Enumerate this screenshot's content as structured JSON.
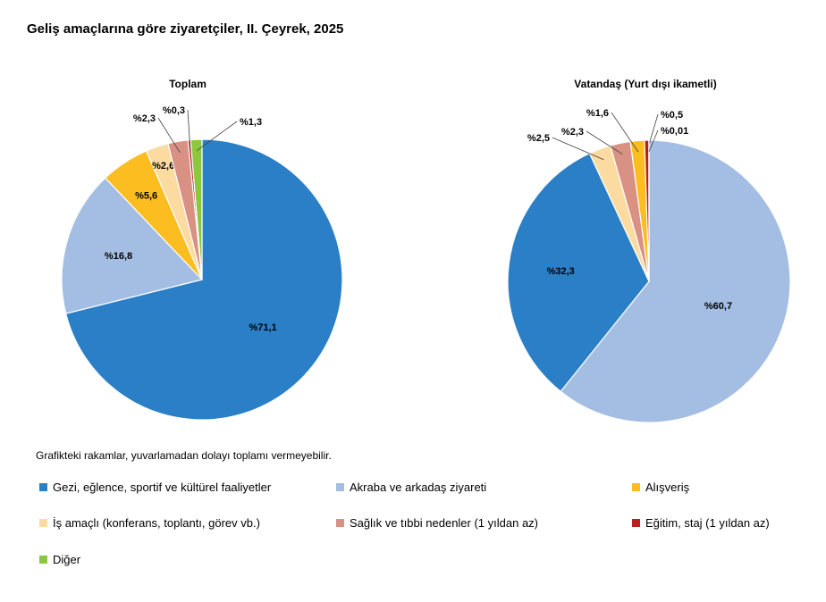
{
  "page_title": "Geliş amaçlarına göre ziyaretçiler, II. Çeyrek, 2025",
  "note": "Grafikteki rakamlar, yuvarlamadan dolayı toplamı vermeyebilir.",
  "legend": [
    {
      "name": "Gezi, eğlence, sportif ve kültürel faaliyetler",
      "color": "#2a7fc6"
    },
    {
      "name": "Akraba ve arkadaş ziyareti",
      "color": "#a3bde3"
    },
    {
      "name": "Alışveriş",
      "color": "#fbbd20"
    },
    {
      "name": "İş amaçlı (konferans, toplantı, görev vb.)",
      "color": "#fcdba0"
    },
    {
      "name": "Sağlık ve tıbbi nedenler (1 yıldan az)",
      "color": "#d99183"
    },
    {
      "name": "Eğitim, staj (1 yıldan az)",
      "color": "#b81f1f"
    },
    {
      "name": "Diğer",
      "color": "#8dc63f"
    }
  ],
  "chart_data": [
    {
      "type": "pie",
      "title": "Toplam",
      "slices": [
        {
          "name": "Gezi, eğlence, sportif ve kültürel faaliyetler",
          "value": 71.1,
          "label": "%71,1",
          "color": "#2a7fc6"
        },
        {
          "name": "Akraba ve arkadaş ziyareti",
          "value": 16.8,
          "label": "%16,8",
          "color": "#a3bde3"
        },
        {
          "name": "Alışveriş",
          "value": 5.6,
          "label": "%5,6",
          "color": "#fbbd20"
        },
        {
          "name": "İş amaçlı (konferans, toplantı, görev vb.)",
          "value": 2.6,
          "label": "%2,6",
          "color": "#fcdba0"
        },
        {
          "name": "Sağlık ve tıbbi nedenler (1 yıldan az)",
          "value": 2.3,
          "label": "%2,3",
          "color": "#d99183"
        },
        {
          "name": "Eğitim, staj (1 yıldan az)",
          "value": 0.3,
          "label": "%0,3",
          "color": "#b81f1f"
        },
        {
          "name": "Diğer",
          "value": 1.3,
          "label": "%1,3",
          "color": "#8dc63f"
        }
      ]
    },
    {
      "type": "pie",
      "title": "Vatandaş (Yurt dışı ikametli)",
      "slices": [
        {
          "name": "Akraba ve arkadaş ziyareti",
          "value": 60.7,
          "label": "%60,7",
          "color": "#a3bde3"
        },
        {
          "name": "Gezi, eğlence, sportif ve kültürel faaliyetler",
          "value": 32.3,
          "label": "%32,3",
          "color": "#2a7fc6"
        },
        {
          "name": "İş amaçlı (konferans, toplantı, görev vb.)",
          "value": 2.5,
          "label": "%2,5",
          "color": "#fcdba0"
        },
        {
          "name": "Sağlık ve tıbbi nedenler (1 yıldan az)",
          "value": 2.3,
          "label": "%2,3",
          "color": "#d99183"
        },
        {
          "name": "Alışveriş",
          "value": 1.6,
          "label": "%1,6",
          "color": "#fbbd20"
        },
        {
          "name": "Eğitim, staj (1 yıldan az)",
          "value": 0.5,
          "label": "%0,5",
          "color": "#b81f1f"
        },
        {
          "name": "Diğer",
          "value": 0.01,
          "label": "%0,01",
          "color": "#8dc63f"
        }
      ]
    }
  ]
}
